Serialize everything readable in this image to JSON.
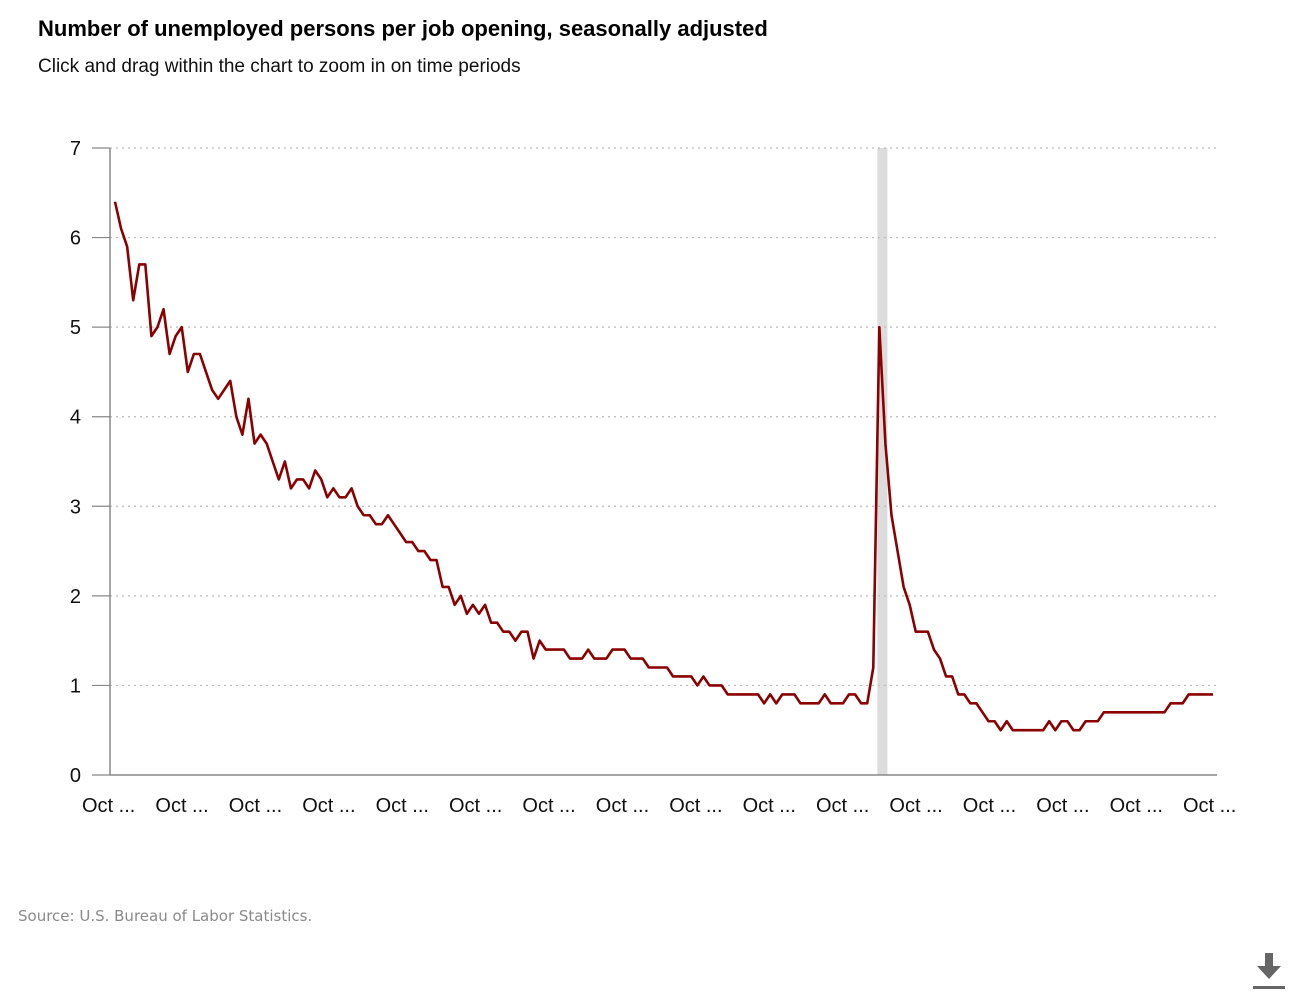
{
  "title": "Number of unemployed persons per job opening, seasonally adjusted",
  "subtitle": "Click and drag within the chart to zoom in on time periods",
  "source": "Source: U.S. Bureau of Labor Statistics.",
  "download_icon": "download-icon",
  "colors": {
    "line": "#8b0000",
    "recession": "#dcdcdc",
    "axis": "#888888",
    "grid": "#bbbbbb"
  },
  "chart_data": {
    "type": "line",
    "title": "Number of unemployed persons per job opening, seasonally adjusted",
    "xlabel": "",
    "ylabel": "",
    "ylim": [
      0,
      7
    ],
    "yticks": [
      0,
      1,
      2,
      3,
      4,
      5,
      6,
      7
    ],
    "grid": true,
    "x_tick_labels": [
      "Oct ...",
      "Oct ...",
      "Oct ...",
      "Oct ...",
      "Oct ...",
      "Oct ...",
      "Oct ...",
      "Oct ...",
      "Oct ...",
      "Oct ...",
      "Oct ...",
      "Oct ...",
      "Oct ...",
      "Oct ...",
      "Oct ...",
      "Oct ..."
    ],
    "recession_band_index": [
      126,
      127
    ],
    "series": [
      {
        "values": [
          6.4,
          6.1,
          5.9,
          5.3,
          5.7,
          5.7,
          4.9,
          5.0,
          5.2,
          4.7,
          4.9,
          5.0,
          4.5,
          4.7,
          4.7,
          4.5,
          4.3,
          4.2,
          4.3,
          4.4,
          4.0,
          3.8,
          4.2,
          3.7,
          3.8,
          3.7,
          3.5,
          3.3,
          3.5,
          3.2,
          3.3,
          3.3,
          3.2,
          3.4,
          3.3,
          3.1,
          3.2,
          3.1,
          3.1,
          3.2,
          3.0,
          2.9,
          2.9,
          2.8,
          2.8,
          2.9,
          2.8,
          2.7,
          2.6,
          2.6,
          2.5,
          2.5,
          2.4,
          2.4,
          2.1,
          2.1,
          1.9,
          2.0,
          1.8,
          1.9,
          1.8,
          1.9,
          1.7,
          1.7,
          1.6,
          1.6,
          1.5,
          1.6,
          1.6,
          1.3,
          1.5,
          1.4,
          1.4,
          1.4,
          1.4,
          1.3,
          1.3,
          1.3,
          1.4,
          1.3,
          1.3,
          1.3,
          1.4,
          1.4,
          1.4,
          1.3,
          1.3,
          1.3,
          1.2,
          1.2,
          1.2,
          1.2,
          1.1,
          1.1,
          1.1,
          1.1,
          1.0,
          1.1,
          1.0,
          1.0,
          1.0,
          0.9,
          0.9,
          0.9,
          0.9,
          0.9,
          0.9,
          0.8,
          0.9,
          0.8,
          0.9,
          0.9,
          0.9,
          0.8,
          0.8,
          0.8,
          0.8,
          0.9,
          0.8,
          0.8,
          0.8,
          0.9,
          0.9,
          0.8,
          0.8,
          1.2,
          5.0,
          3.7,
          2.9,
          2.5,
          2.1,
          1.9,
          1.6,
          1.6,
          1.6,
          1.4,
          1.3,
          1.1,
          1.1,
          0.9,
          0.9,
          0.8,
          0.8,
          0.7,
          0.6,
          0.6,
          0.5,
          0.6,
          0.5,
          0.5,
          0.5,
          0.5,
          0.5,
          0.5,
          0.6,
          0.5,
          0.6,
          0.6,
          0.5,
          0.5,
          0.6,
          0.6,
          0.6,
          0.7,
          0.7,
          0.7,
          0.7,
          0.7,
          0.7,
          0.7,
          0.7,
          0.7,
          0.7,
          0.7,
          0.8,
          0.8,
          0.8,
          0.9,
          0.9,
          0.9,
          0.9,
          0.9
        ]
      }
    ]
  }
}
